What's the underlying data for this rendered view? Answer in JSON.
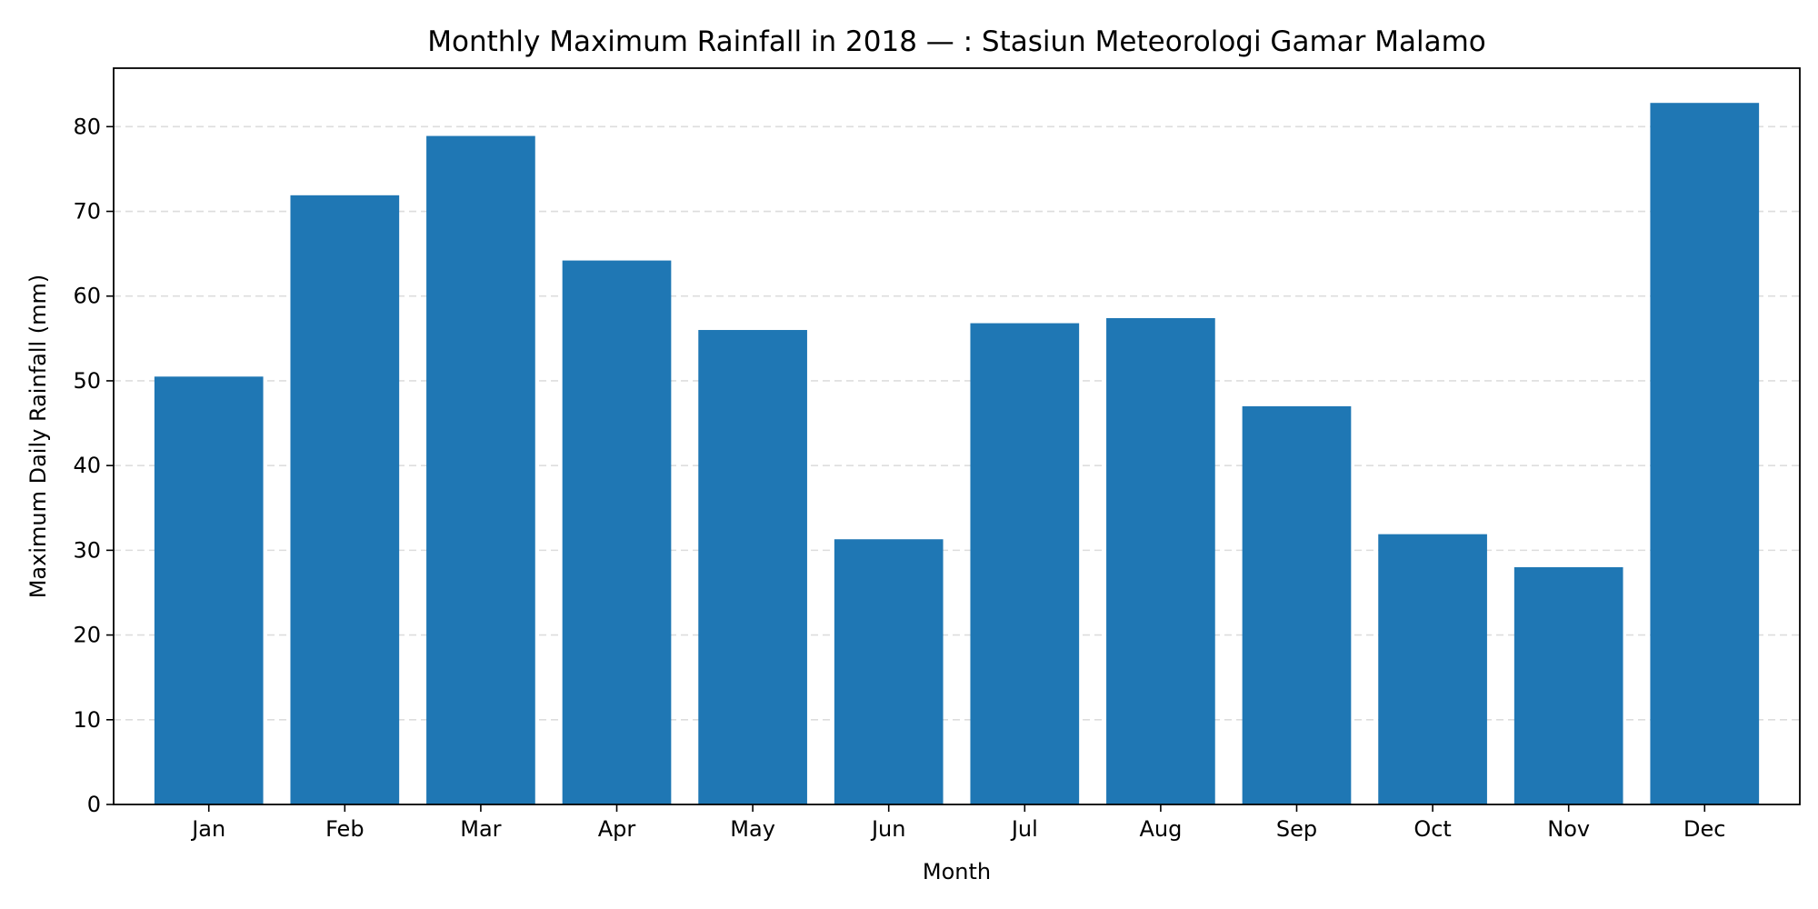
{
  "chart_data": {
    "type": "bar",
    "title": "Monthly Maximum Rainfall in 2018 — :  Stasiun Meteorologi Gamar Malamo",
    "xlabel": "Month",
    "ylabel": "Maximum Daily Rainfall (mm)",
    "categories": [
      "Jan",
      "Feb",
      "Mar",
      "Apr",
      "May",
      "Jun",
      "Jul",
      "Aug",
      "Sep",
      "Oct",
      "Nov",
      "Dec"
    ],
    "values": [
      50.5,
      71.9,
      78.9,
      64.2,
      56.0,
      31.3,
      56.8,
      57.4,
      47.0,
      31.9,
      28.0,
      82.8
    ],
    "ylim": [
      0,
      86.9
    ],
    "yticks": [
      0,
      10,
      20,
      30,
      40,
      50,
      60,
      70,
      80
    ],
    "grid": "y-dashed",
    "bar_color": "#1f77b4"
  }
}
